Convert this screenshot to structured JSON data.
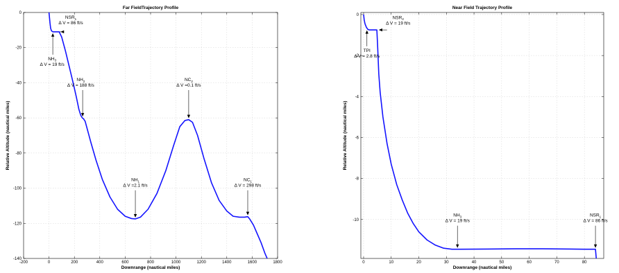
{
  "chart_data": [
    {
      "type": "line",
      "title": "Far FieldTrajectory Profile",
      "xlabel": "Downrange (nautical miles)",
      "ylabel": "Relative Altitude (nautical miles)",
      "xlim": [
        -200,
        1800
      ],
      "ylim": [
        -140,
        0
      ],
      "xticks": [
        -200,
        0,
        200,
        400,
        600,
        800,
        1000,
        1200,
        1400,
        1600,
        1800
      ],
      "yticks": [
        0,
        -20,
        -40,
        -60,
        -80,
        -100,
        -120,
        -140
      ],
      "grid": true,
      "series": [
        {
          "color": "#1414ff",
          "points": [
            [
              0,
              0
            ],
            [
              4,
              -3
            ],
            [
              8,
              -6
            ],
            [
              13,
              -9
            ],
            [
              20,
              -10.5
            ],
            [
              30,
              -11
            ],
            [
              55,
              -11
            ],
            [
              80,
              -11
            ],
            [
              100,
              -14
            ],
            [
              130,
              -22
            ],
            [
              160,
              -31
            ],
            [
              190,
              -40
            ],
            [
              215,
              -48
            ],
            [
              235,
              -55
            ],
            [
              250,
              -58.5
            ],
            [
              262,
              -60
            ],
            [
              272,
              -60.5
            ],
            [
              285,
              -62
            ],
            [
              300,
              -66
            ],
            [
              330,
              -74
            ],
            [
              370,
              -84
            ],
            [
              420,
              -95
            ],
            [
              480,
              -105
            ],
            [
              540,
              -112
            ],
            [
              600,
              -116
            ],
            [
              650,
              -117.3
            ],
            [
              680,
              -117.5
            ],
            [
              720,
              -116.5
            ],
            [
              780,
              -112
            ],
            [
              850,
              -103
            ],
            [
              920,
              -90
            ],
            [
              980,
              -76
            ],
            [
              1030,
              -65
            ],
            [
              1070,
              -61.5
            ],
            [
              1100,
              -61
            ],
            [
              1130,
              -62.5
            ],
            [
              1170,
              -70
            ],
            [
              1220,
              -83
            ],
            [
              1280,
              -97
            ],
            [
              1340,
              -107
            ],
            [
              1400,
              -113
            ],
            [
              1450,
              -116
            ],
            [
              1500,
              -116.5
            ],
            [
              1540,
              -116.5
            ],
            [
              1565,
              -116.2
            ],
            [
              1580,
              -117.5
            ],
            [
              1610,
              -121
            ],
            [
              1640,
              -126
            ],
            [
              1670,
              -131
            ],
            [
              1700,
              -137
            ],
            [
              1718,
              -140
            ]
          ]
        }
      ],
      "annotations": [
        {
          "name": "NSR",
          "sub": "1",
          "dv": "Δ V = 86 ft/s",
          "at": [
            80,
            -11
          ],
          "label_at": [
            150,
            -4
          ],
          "dir": "left",
          "key": "nsr1"
        },
        {
          "name": "NH",
          "sub": "3",
          "dv": "Δ V = 19 ft/s",
          "at": [
            30,
            -11
          ],
          "label_at": [
            25,
            -24
          ],
          "dir": "up",
          "key": "nh3"
        },
        {
          "name": "NH",
          "sub": "2",
          "dv": "Δ V = 188 ft/s",
          "at": [
            265,
            -60
          ],
          "label_at": [
            250,
            -43
          ],
          "dir": "down",
          "key": "nh2"
        },
        {
          "name": "NC",
          "sub": "2",
          "dv": "Δ V =0.1 ft/s",
          "at": [
            1100,
            -61
          ],
          "label_at": [
            1100,
            -43
          ],
          "dir": "down",
          "key": "nc2"
        },
        {
          "name": "NH",
          "sub": "1",
          "dv": "Δ V =2.1 ft/s",
          "at": [
            680,
            -117.5
          ],
          "label_at": [
            680,
            -100
          ],
          "dir": "down",
          "key": "nh1"
        },
        {
          "name": "NC",
          "sub": "1",
          "dv": "Δ V = 298 ft/s",
          "at": [
            1565,
            -116.2
          ],
          "label_at": [
            1565,
            -100
          ],
          "dir": "down",
          "key": "nc1"
        }
      ]
    },
    {
      "type": "line",
      "title": "Near Field Trajectory Profile",
      "xlabel": "Downrange (nautical miles)",
      "ylabel": "Relative Altitude (nautical miles)",
      "xlim": [
        -1,
        87
      ],
      "ylim": [
        -11.9,
        0.1
      ],
      "xticks": [
        0,
        10,
        20,
        30,
        40,
        50,
        60,
        70,
        80
      ],
      "yticks": [
        0,
        -2,
        -4,
        -6,
        -8,
        -10
      ],
      "grid": true,
      "series": [
        {
          "color": "#1414ff",
          "points": [
            [
              0,
              0
            ],
            [
              0.2,
              -0.25
            ],
            [
              0.5,
              -0.45
            ],
            [
              1,
              -0.62
            ],
            [
              1.5,
              -0.72
            ],
            [
              2,
              -0.75
            ],
            [
              3,
              -0.75
            ],
            [
              4,
              -0.75
            ],
            [
              4.8,
              -0.75
            ],
            [
              5.1,
              -1.6
            ],
            [
              5.5,
              -2.9
            ],
            [
              6,
              -3.8
            ],
            [
              7,
              -5.0
            ],
            [
              8.5,
              -6.3
            ],
            [
              10,
              -7.3
            ],
            [
              12,
              -8.3
            ],
            [
              14,
              -9.05
            ],
            [
              16,
              -9.7
            ],
            [
              18,
              -10.2
            ],
            [
              20,
              -10.6
            ],
            [
              23,
              -11.0
            ],
            [
              26,
              -11.25
            ],
            [
              29,
              -11.4
            ],
            [
              32,
              -11.45
            ],
            [
              35,
              -11.45
            ],
            [
              45,
              -11.44
            ],
            [
              55,
              -11.43
            ],
            [
              65,
              -11.43
            ],
            [
              75,
              -11.44
            ],
            [
              80,
              -11.45
            ],
            [
              84,
              -11.45
            ],
            [
              84.3,
              -11.9
            ]
          ]
        }
      ],
      "annotations": [
        {
          "name": "NSR",
          "sub": "2",
          "dv": "Δ V = 19 ft/s",
          "at": [
            5,
            -0.75
          ],
          "label_at": [
            11.5,
            -0.25
          ],
          "dir": "left",
          "key": "nsr2"
        },
        {
          "name": "TPI",
          "sub": "",
          "dv": "Δ V = 2.8 ft/s",
          "at": [
            1.2,
            -0.7
          ],
          "label_at": [
            1.2,
            -1.55
          ],
          "dir": "up",
          "key": "tpi"
        },
        {
          "name": "NH",
          "sub": "3",
          "dv": "Δ V = 19 ft/s",
          "at": [
            34,
            -11.45
          ],
          "label_at": [
            34,
            -10.2
          ],
          "dir": "down",
          "key": "nh3"
        },
        {
          "name": "NSR",
          "sub": "1",
          "dv": "Δ V = 86 ft/s",
          "at": [
            84,
            -11.45
          ],
          "label_at": [
            84,
            -10.2
          ],
          "dir": "down",
          "key": "nsr1"
        }
      ]
    }
  ]
}
